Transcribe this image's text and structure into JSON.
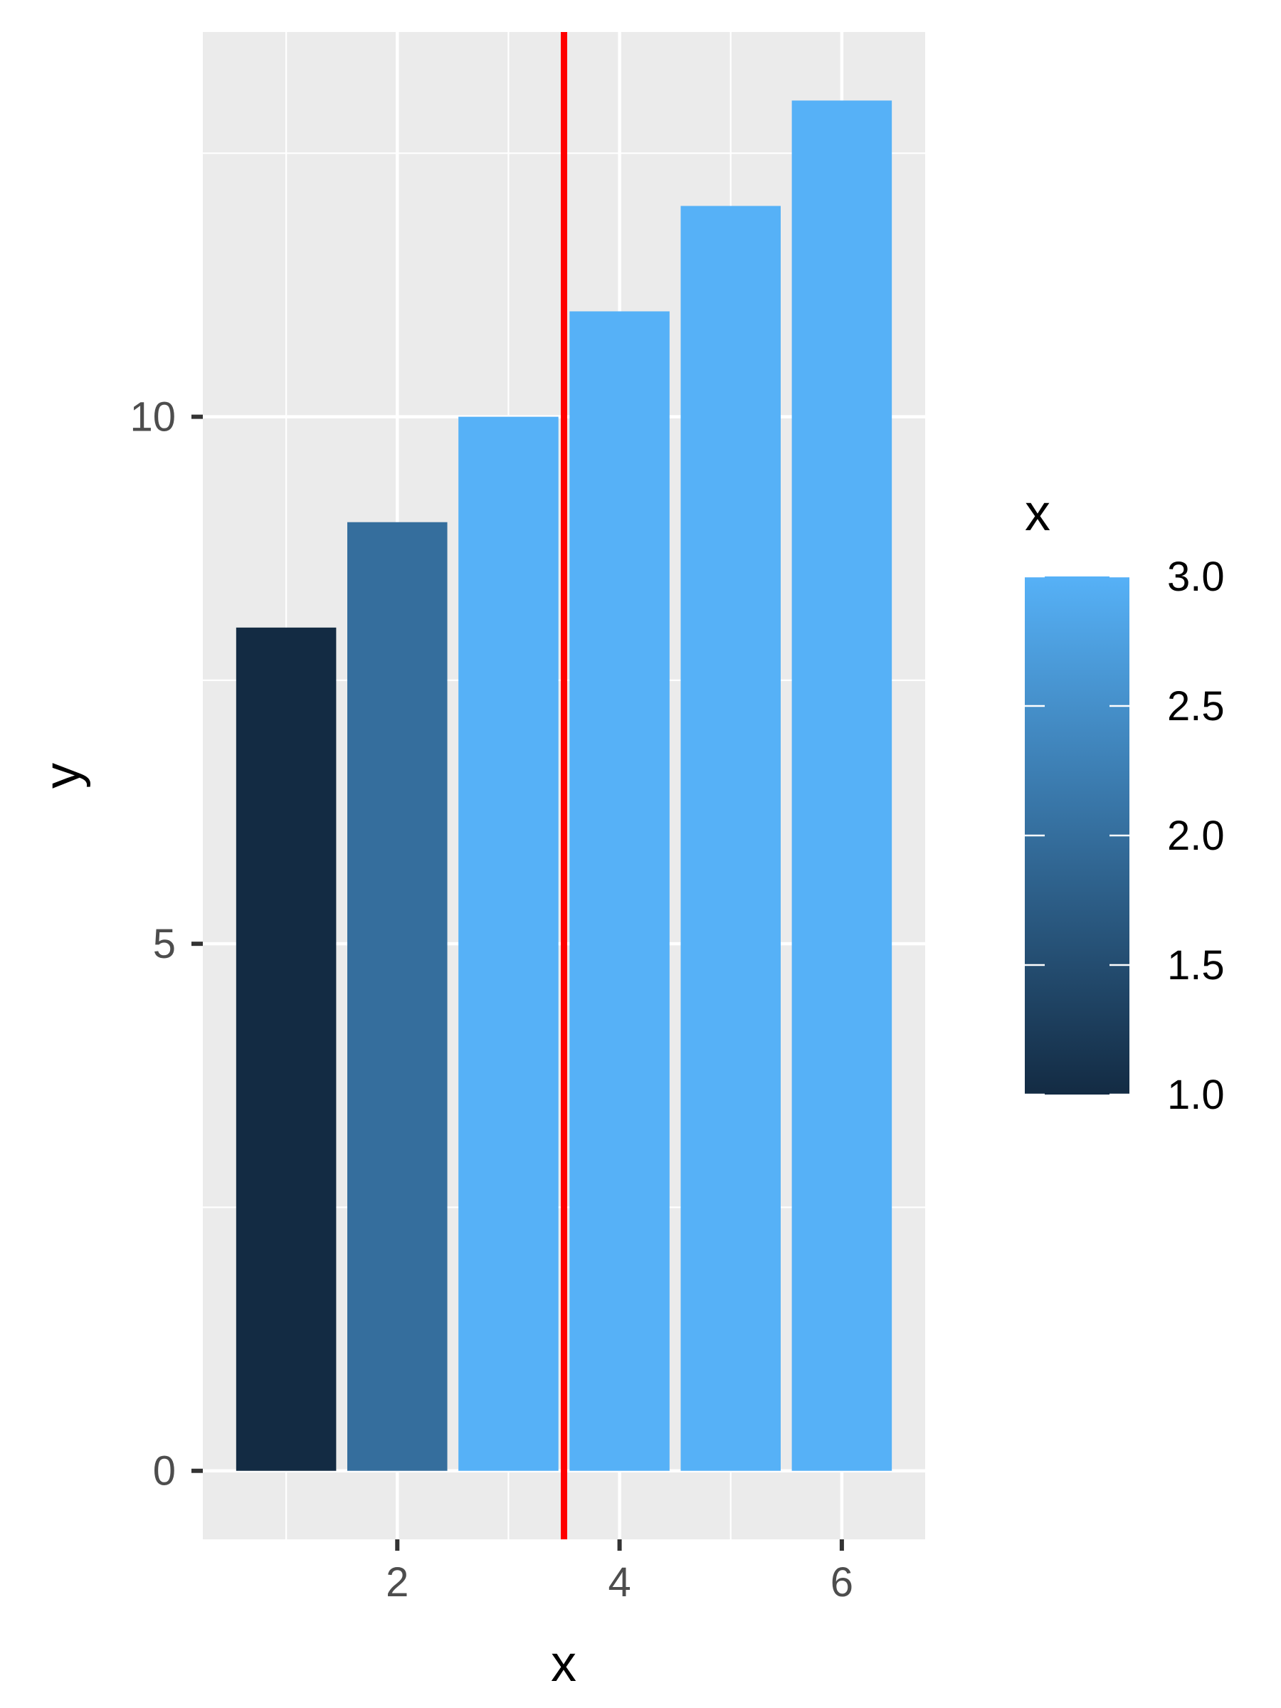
{
  "chart_data": {
    "type": "bar",
    "x": [
      1,
      2,
      3,
      4,
      5,
      6
    ],
    "values": [
      8,
      9,
      10,
      11,
      12,
      13
    ],
    "fill_values": [
      1,
      2,
      3,
      3,
      3,
      3
    ],
    "xlabel": "x",
    "ylabel": "y",
    "xlim": [
      0.25,
      6.75
    ],
    "ylim": [
      -0.65,
      13.65
    ],
    "x_ticks": [
      "2",
      "4",
      "6"
    ],
    "y_ticks": [
      "0",
      "5",
      "10"
    ],
    "vline": {
      "x": 3.5,
      "color": "#ff0000"
    },
    "legend": {
      "title": "x",
      "position": "right",
      "type": "colorbar",
      "labels": [
        "3.0",
        "2.5",
        "2.0",
        "1.5",
        "1.0"
      ],
      "color_low": "#132b43",
      "color_high": "#56b1f7"
    },
    "grid": true,
    "panel_background": "#ebebeb",
    "grid_color": "#ffffff"
  }
}
